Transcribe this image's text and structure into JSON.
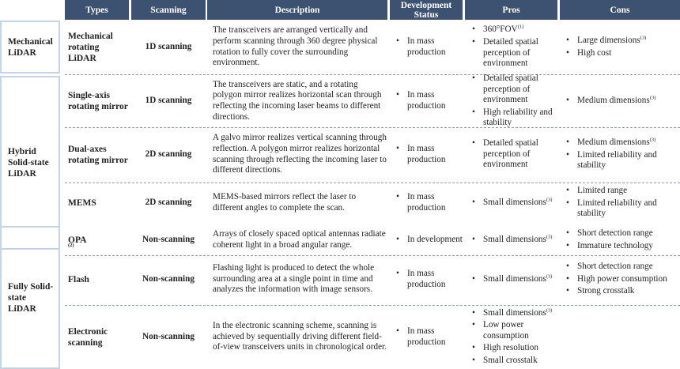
{
  "headers": [
    "Types",
    "Scanning",
    "Description",
    "Development Status",
    "Pros",
    "Cons"
  ],
  "categories": [
    {
      "label": "Mechanical LiDAR"
    },
    {
      "label": "Hybrid Solid-state LiDAR"
    },
    {
      "label": "Fully Solid-state LiDAR"
    }
  ],
  "rows": [
    {
      "type": "Mechanical rotating LiDAR",
      "scanning": "1D scanning",
      "description": "The transceivers are arranged vertically and perform scanning through 360 degree physical rotation to fully cover the surrounding environment.",
      "status": [
        "In mass production"
      ],
      "pros": [
        "360°FOV(1)",
        "Detailed spatial perception of environment"
      ],
      "cons": [
        "Large dimensions(3)",
        "High cost"
      ]
    },
    {
      "type": "Single-axis rotating mirror",
      "scanning": "1D scanning",
      "description": "The transceivers are static, and a rotating polygon mirror realizes horizontal scan through reflecting the incoming laser beams to different directions.",
      "status": [
        "In mass production"
      ],
      "pros": [
        "Detailed spatial perception of environment",
        "High reliability and stability"
      ],
      "cons": [
        "Medium dimensions(3)"
      ]
    },
    {
      "type": "Dual-axes rotating mirror",
      "scanning": "2D scanning",
      "description": "A galvo mirror realizes vertical scanning through reflection. A polygon mirror realizes horizontal scanning through reflecting the incoming laser to different directions.",
      "status": [
        "In mass production"
      ],
      "pros": [
        "Detailed spatial perception of environment"
      ],
      "cons": [
        "Medium dimensions(3)",
        "Limited reliability and stability"
      ]
    },
    {
      "type": "MEMS",
      "scanning": "2D scanning",
      "description": "MEMS-based mirrors reflect the laser to different angles to complete the scan.",
      "status": [
        "In mass production"
      ],
      "pros": [
        "Small dimensions(3)"
      ],
      "cons": [
        "Limited range",
        "Limited reliability and stability"
      ]
    },
    {
      "type": "OPA(2)",
      "scanning": "Non-scanning",
      "description": "Arrays of closely spaced optical antennas radiate coherent light in a broad angular range.",
      "status": [
        "In development"
      ],
      "pros": [
        "Small dimensions(3)"
      ],
      "cons": [
        "Short detection range",
        "Immature technology"
      ]
    },
    {
      "type": "Flash",
      "scanning": "Non-scanning",
      "description": "Flashing light is produced to detect the whole surrounding area at a single point in time and analyzes the information with image sensors.",
      "status": [
        "In mass production"
      ],
      "pros": [
        "Small dimensions(3)"
      ],
      "cons": [
        "Short detection range",
        "High power consumption",
        "Strong crosstalk"
      ]
    },
    {
      "type": "Electronic scanning",
      "scanning": "Non-scanning",
      "description": "In the electronic scanning scheme, scanning is achieved by sequentially driving different field-of-view transceivers units in chronological order.",
      "status": [
        "In mass production"
      ],
      "pros": [
        "Small dimensions(3)",
        "Low power consumption",
        "High resolution",
        "Small crosstalk"
      ],
      "cons": []
    }
  ],
  "colors": {
    "header": "#3d5170",
    "category_border": "#c5d3e6",
    "separator": "#8da0c0"
  }
}
